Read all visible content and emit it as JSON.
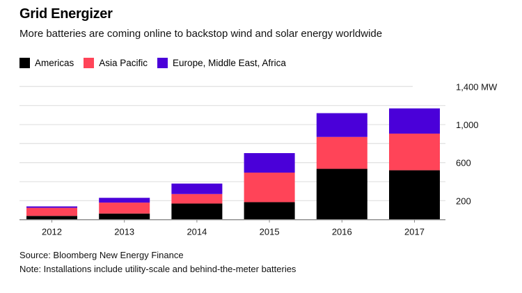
{
  "title": "Grid Energizer",
  "subtitle": "More batteries are coming online to backstop wind and solar energy worldwide",
  "source": "Source: Bloomberg New Energy Finance",
  "note": "Note: Installations include utility-scale and behind-the-meter batteries",
  "chart_data": {
    "type": "bar",
    "stacked": true,
    "categories": [
      "2012",
      "2013",
      "2014",
      "2015",
      "2016",
      "2017"
    ],
    "series": [
      {
        "name": "Americas",
        "color": "#000000",
        "values": [
          40,
          65,
          170,
          185,
          535,
          520
        ]
      },
      {
        "name": "Asia Pacific",
        "color": "#ff4458",
        "values": [
          85,
          115,
          100,
          310,
          335,
          385
        ]
      },
      {
        "name": "Europe, Middle East, Africa",
        "color": "#4a00d9",
        "values": [
          15,
          50,
          110,
          205,
          250,
          265
        ]
      }
    ],
    "ylim": [
      0,
      1400
    ],
    "yticks": [
      {
        "value": 200,
        "label": "200"
      },
      {
        "value": 600,
        "label": "600"
      },
      {
        "value": 1000,
        "label": "1,000"
      },
      {
        "value": 1400,
        "label": "1,400 MW"
      }
    ],
    "grid_step": 200,
    "grid": true,
    "legend": "top-left",
    "yaxis_position": "right"
  }
}
